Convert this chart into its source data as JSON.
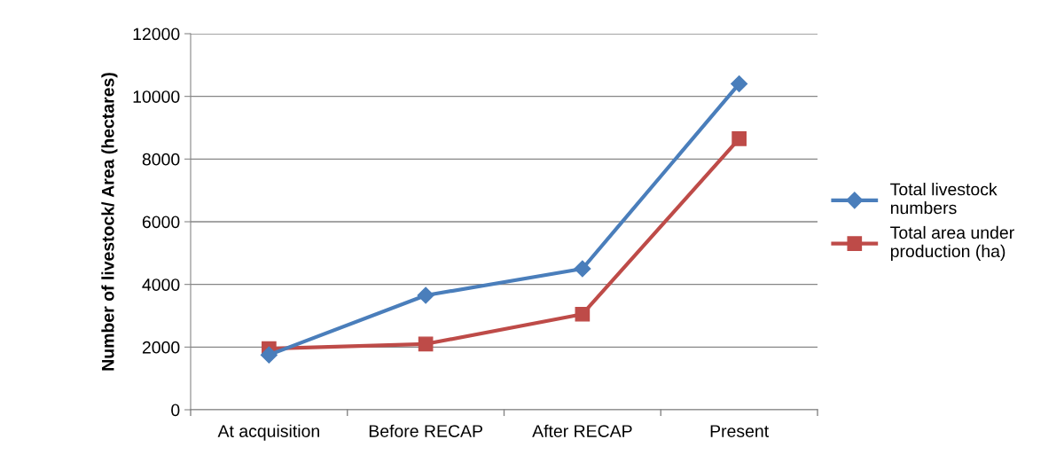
{
  "chart_data": {
    "type": "line",
    "ylabel": "Number of livestock/ Area (hectares)",
    "categories": [
      "At acquisition",
      "Before RECAP",
      "After RECAP",
      "Present"
    ],
    "series": [
      {
        "name": "Total livestock numbers",
        "color": "#4a7ebb",
        "marker": "diamond",
        "values": [
          1750,
          3650,
          4500,
          10400
        ]
      },
      {
        "name": "Total area under production (ha)",
        "color": "#be4b48",
        "marker": "square",
        "values": [
          1950,
          2100,
          3050,
          8650
        ]
      }
    ],
    "ylim": [
      0,
      12000
    ],
    "yticks": [
      0,
      2000,
      4000,
      6000,
      8000,
      10000,
      12000
    ],
    "grid": "y",
    "legend": "right",
    "line_style": "solid"
  }
}
